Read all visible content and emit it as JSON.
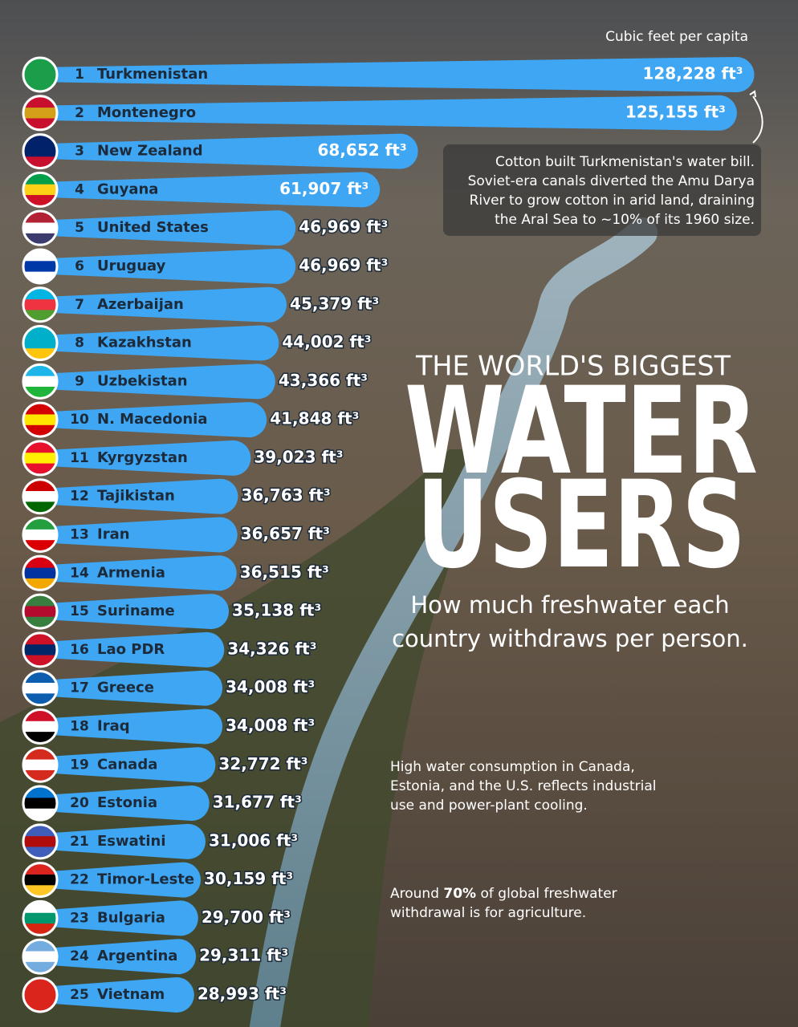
{
  "chart_data": {
    "type": "bar",
    "orientation": "horizontal",
    "axis_label": "Cubic feet per capita",
    "title_lead": "THE WORLD'S BIGGEST",
    "title_line1": "WATER",
    "title_line2": "USERS",
    "subtitle": [
      "How much freshwater each",
      "country withdraws per person."
    ],
    "annotation": [
      "Cotton built Turkmenistan's water bill.",
      "Soviet-era canals diverted the Amu Darya",
      "River to grow cotton in arid land, draining",
      "the Aral Sea to ~10% of its 1960 size."
    ],
    "note1": [
      "High water consumption in Canada,",
      "Estonia, and the U.S. reflects industrial",
      "use and power-plant cooling."
    ],
    "note2": {
      "before": "Around ",
      "bold": "70%",
      "after": " of global freshwater withdrawal is for agriculture."
    },
    "ranks": [
      "1",
      "2",
      "3",
      "4",
      "5",
      "6",
      "7",
      "8",
      "9",
      "10",
      "11",
      "12",
      "13",
      "14",
      "15",
      "16",
      "17",
      "18",
      "19",
      "20",
      "21",
      "22",
      "23",
      "24",
      "25"
    ],
    "categories": [
      "Turkmenistan",
      "Montenegro",
      "New Zealand",
      "Guyana",
      "United States",
      "Uruguay",
      "Azerbaijan",
      "Kazakhstan",
      "Uzbekistan",
      "N. Macedonia",
      "Kyrgyzstan",
      "Tajikistan",
      "Iran",
      "Armenia",
      "Suriname",
      "Lao PDR",
      "Greece",
      "Iraq",
      "Canada",
      "Estonia",
      "Eswatini",
      "Timor-Leste",
      "Bulgaria",
      "Argentina",
      "Vietnam"
    ],
    "values": [
      128228,
      125155,
      68652,
      61907,
      46969,
      46969,
      45379,
      44002,
      43366,
      41848,
      39023,
      36763,
      36657,
      36515,
      35138,
      34326,
      34008,
      34008,
      32772,
      31677,
      31006,
      30159,
      29700,
      29311,
      28993
    ],
    "value_labels": [
      "128,228 ft³",
      "125,155 ft³",
      "68,652 ft³",
      "61,907 ft³",
      "46,969 ft³",
      "46,969 ft³",
      "45,379 ft³",
      "44,002 ft³",
      "43,366 ft³",
      "41,848 ft³",
      "39,023 ft³",
      "36,763 ft³",
      "36,657 ft³",
      "36,515 ft³",
      "35,138 ft³",
      "34,326 ft³",
      "34,008 ft³",
      "34,008 ft³",
      "32,772 ft³",
      "31,677 ft³",
      "31,006 ft³",
      "30,159 ft³",
      "29,700 ft³",
      "29,311 ft³",
      "28,993 ft³"
    ],
    "color": "#3ea6f2",
    "xlim": [
      0,
      130000
    ]
  }
}
